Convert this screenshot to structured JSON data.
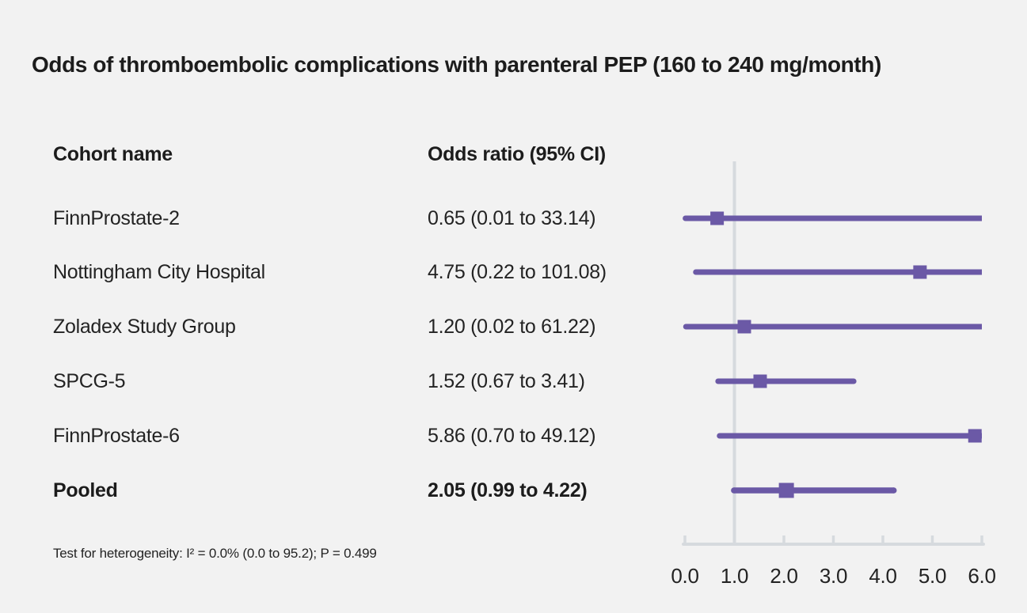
{
  "title": "Odds of thromboembolic complications with parenteral PEP (160 to 240 mg/month)",
  "table": {
    "col1_header": "Cohort name",
    "col2_header": "Odds ratio (95% CI)",
    "rows": [
      {
        "name": "FinnProstate-2",
        "or_text": "0.65 (0.01 to 33.14)"
      },
      {
        "name": "Nottingham City Hospital",
        "or_text": "4.75 (0.22 to 101.08)"
      },
      {
        "name": "Zoladex Study Group",
        "or_text": "1.20 (0.02 to 61.22)"
      },
      {
        "name": "SPCG-5",
        "or_text": "1.52 (0.67 to 3.41)"
      },
      {
        "name": "FinnProstate-6",
        "or_text": "5.86 (0.70 to 49.12)"
      },
      {
        "name": "Pooled",
        "or_text": "2.05 (0.99 to 4.22)"
      }
    ]
  },
  "footnote": "Test for heterogeneity: I² = 0.0% (0.0 to 95.2); P = 0.499",
  "chart_data": {
    "type": "forest",
    "title": "Odds of thromboembolic complications with parenteral PEP (160 to 240 mg/month)",
    "series": [
      {
        "label": "FinnProstate-2",
        "or": 0.65,
        "ci_low": 0.01,
        "ci_high": 33.14,
        "pooled": false
      },
      {
        "label": "Nottingham City Hospital",
        "or": 4.75,
        "ci_low": 0.22,
        "ci_high": 101.08,
        "pooled": false
      },
      {
        "label": "Zoladex Study Group",
        "or": 1.2,
        "ci_low": 0.02,
        "ci_high": 61.22,
        "pooled": false
      },
      {
        "label": "SPCG-5",
        "or": 1.52,
        "ci_low": 0.67,
        "ci_high": 3.41,
        "pooled": false
      },
      {
        "label": "FinnProstate-6",
        "or": 5.86,
        "ci_low": 0.7,
        "ci_high": 49.12,
        "pooled": false
      },
      {
        "label": "Pooled",
        "or": 2.05,
        "ci_low": 0.99,
        "ci_high": 4.22,
        "pooled": true
      }
    ],
    "xlabel": "",
    "x_ticks": [
      "0.0",
      "1.0",
      "2.0",
      "3.0",
      "4.0",
      "5.0",
      "6.0"
    ],
    "x_tick_values": [
      0,
      1,
      2,
      3,
      4,
      5,
      6
    ],
    "xlim": [
      0,
      6
    ],
    "reference_line": 1.0,
    "grid": false,
    "legend": false,
    "colors": {
      "marker": "#6b59a6",
      "axis": "#d6dade",
      "background": "#f2f2f2",
      "text": "#232323"
    }
  }
}
